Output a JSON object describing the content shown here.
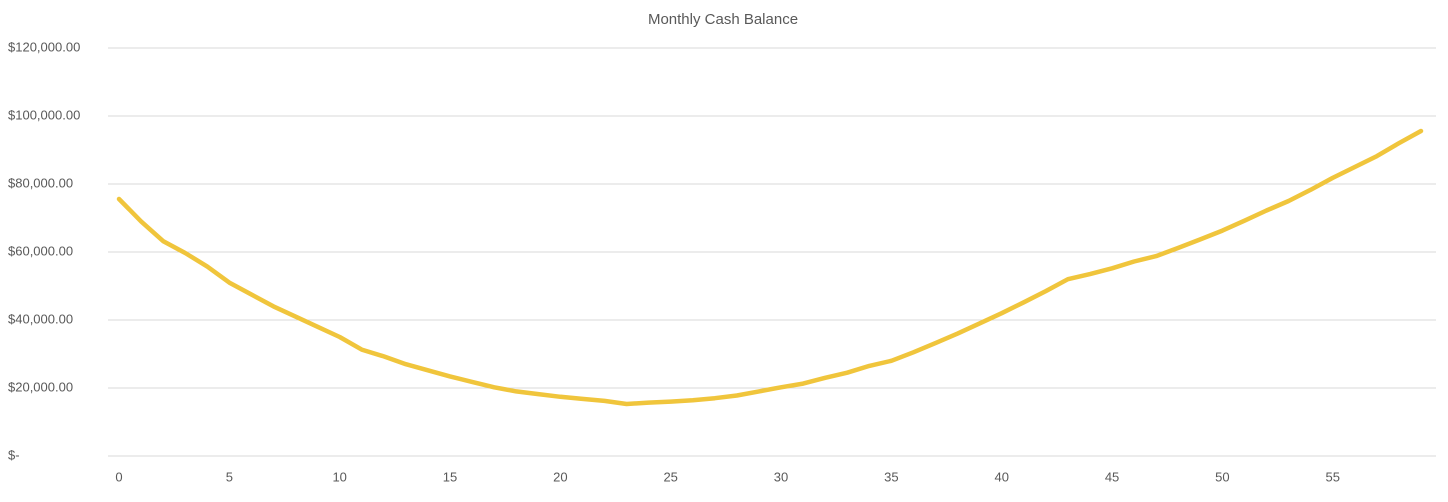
{
  "chart_data": {
    "type": "line",
    "title": "Monthly Cash Balance",
    "x": [
      0,
      1,
      2,
      3,
      4,
      5,
      6,
      7,
      8,
      9,
      10,
      11,
      12,
      13,
      14,
      15,
      16,
      17,
      18,
      19,
      20,
      21,
      22,
      23,
      24,
      25,
      26,
      27,
      28,
      29,
      30,
      31,
      32,
      33,
      34,
      35,
      36,
      37,
      38,
      39,
      40,
      41,
      42,
      43,
      44,
      45,
      46,
      47,
      48,
      49,
      50,
      51,
      52,
      53,
      54,
      55,
      56,
      57,
      58,
      59
    ],
    "series": [
      {
        "name": "Cash Balance",
        "color": "#f0c53c",
        "values": [
          75600,
          69000,
          63200,
          59700,
          55700,
          51000,
          47500,
          44000,
          41000,
          38000,
          35000,
          31300,
          29300,
          27000,
          25200,
          23400,
          21800,
          20200,
          19000,
          18200,
          17400,
          16800,
          16200,
          15300,
          15700,
          16000,
          16400,
          17000,
          17800,
          19000,
          20200,
          21300,
          23000,
          24500,
          26500,
          28000,
          30500,
          33200,
          36000,
          39000,
          42000,
          45200,
          48500,
          52000,
          53500,
          55200,
          57200,
          58800,
          61200,
          63700,
          66300,
          69200,
          72200,
          75000,
          78300,
          81800,
          85000,
          88200,
          92000,
          95600
        ]
      }
    ],
    "xlim": [
      0,
      59
    ],
    "xticks": [
      0,
      5,
      10,
      15,
      20,
      25,
      30,
      35,
      40,
      45,
      50,
      55
    ],
    "ylim": [
      0,
      120000
    ],
    "yticks": [
      {
        "value": 0,
        "label": "$-"
      },
      {
        "value": 20000,
        "label": "$20,000.00"
      },
      {
        "value": 40000,
        "label": "$40,000.00"
      },
      {
        "value": 60000,
        "label": "$60,000.00"
      },
      {
        "value": 80000,
        "label": "$80,000.00"
      },
      {
        "value": 100000,
        "label": "$100,000.00"
      },
      {
        "value": 120000,
        "label": "$120,000.00"
      }
    ],
    "grid": true
  }
}
